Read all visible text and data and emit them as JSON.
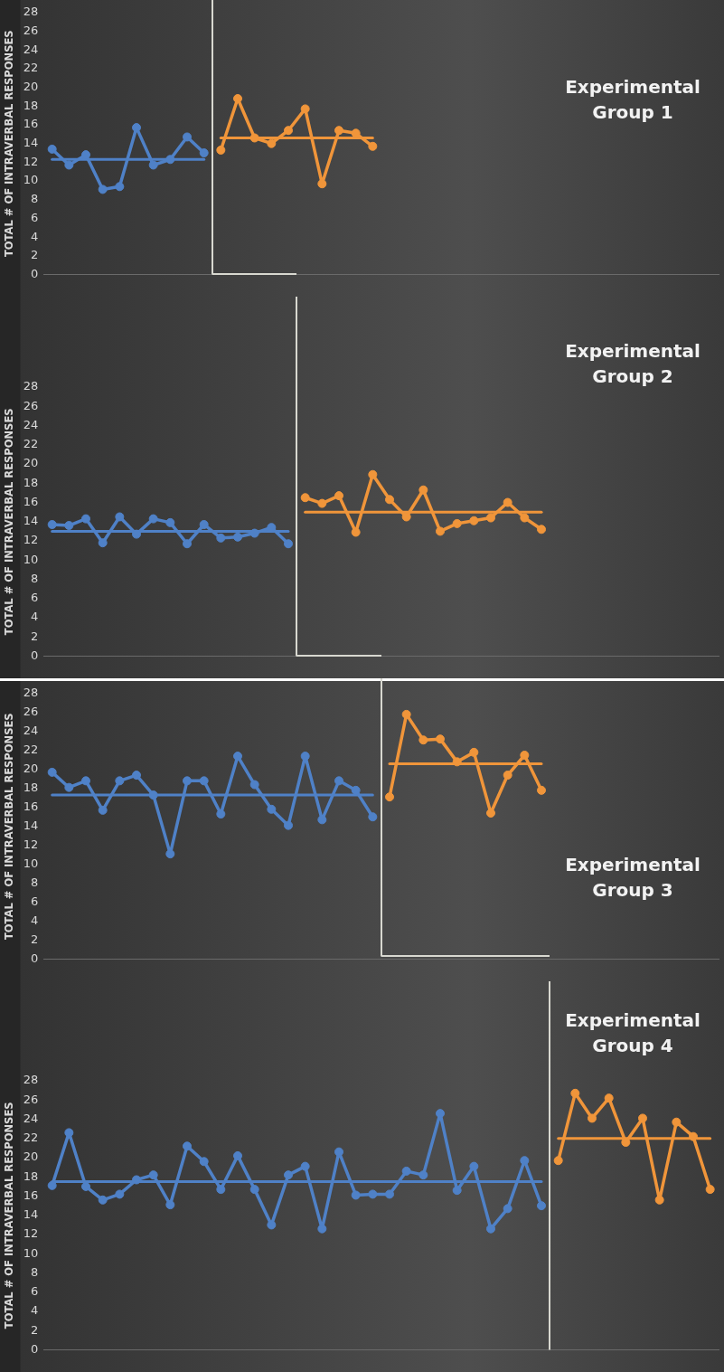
{
  "chart_data": [
    {
      "type": "line",
      "title": "Experimental Group 1",
      "ylabel": "TOTAL # OF INTRAVERBAL RESPONSES",
      "categories": [
        null,
        null,
        null,
        null,
        null,
        null,
        null,
        null,
        null,
        null,
        null,
        null,
        null,
        null,
        null,
        null,
        null,
        null,
        null,
        null,
        null,
        null,
        null,
        null,
        null,
        null,
        null,
        null,
        null,
        null,
        null,
        null,
        null,
        null,
        null,
        null,
        null,
        null,
        null,
        null
      ],
      "ylim": [
        0,
        28
      ],
      "yticks": [
        0,
        2,
        4,
        6,
        8,
        10,
        12,
        14,
        16,
        18,
        20,
        22,
        24,
        26,
        28
      ],
      "grid": false,
      "legend": false,
      "marker": "circle",
      "series": [
        {
          "color": "#4f81c7",
          "values": [
            13.4,
            11.7,
            12.8,
            9.1,
            9.4,
            15.7,
            11.7,
            12.3,
            14.7,
            13.0,
            null,
            null,
            null,
            null,
            null,
            null,
            null,
            null,
            null,
            null,
            null,
            null,
            null,
            null,
            null,
            null,
            null,
            null,
            null,
            null,
            null,
            null,
            null,
            null,
            null,
            null,
            null,
            null,
            null,
            null
          ]
        },
        {
          "color": "#f0953a",
          "values": [
            null,
            null,
            null,
            null,
            null,
            null,
            null,
            null,
            null,
            null,
            13.3,
            18.8,
            14.6,
            14.0,
            15.4,
            17.7,
            9.7,
            15.4,
            15.1,
            13.7,
            null,
            null,
            null,
            null,
            null,
            null,
            null,
            null,
            null,
            null,
            null,
            null,
            null,
            null,
            null,
            null,
            null,
            null,
            null,
            null
          ]
        },
        {
          "type": "line",
          "marker": "none",
          "color": "#4f81c7",
          "values": [
            12.3,
            12.3,
            12.3,
            12.3,
            12.3,
            12.3,
            12.3,
            12.3,
            12.3,
            12.3,
            null,
            null,
            null,
            null,
            null,
            null,
            null,
            null,
            null,
            null,
            null,
            null,
            null,
            null,
            null,
            null,
            null,
            null,
            null,
            null,
            null,
            null,
            null,
            null,
            null,
            null,
            null,
            null,
            null,
            null
          ]
        },
        {
          "type": "line",
          "marker": "none",
          "color": "#f0953a",
          "values": [
            null,
            null,
            null,
            null,
            null,
            null,
            null,
            null,
            null,
            null,
            14.6,
            14.6,
            14.6,
            14.6,
            14.6,
            14.6,
            14.6,
            14.6,
            14.6,
            14.6,
            null,
            null,
            null,
            null,
            null,
            null,
            null,
            null,
            null,
            null,
            null,
            null,
            null,
            null,
            null,
            null,
            null,
            null,
            null,
            null
          ]
        }
      ]
    },
    {
      "type": "line",
      "title": "Experimental Group 2",
      "ylabel": "TOTAL # OF INTRAVERBAL RESPONSES",
      "categories": [
        null,
        null,
        null,
        null,
        null,
        null,
        null,
        null,
        null,
        null,
        null,
        null,
        null,
        null,
        null,
        null,
        null,
        null,
        null,
        null,
        null,
        null,
        null,
        null,
        null,
        null,
        null,
        null,
        null,
        null,
        null,
        null,
        null,
        null,
        null,
        null,
        null,
        null,
        null,
        null
      ],
      "ylim": [
        0,
        28
      ],
      "yticks": [
        0,
        2,
        4,
        6,
        8,
        10,
        12,
        14,
        16,
        18,
        20,
        22,
        24,
        26,
        28
      ],
      "grid": false,
      "legend": false,
      "marker": "circle",
      "series": [
        {
          "color": "#4f81c7",
          "values": [
            13.7,
            13.6,
            14.3,
            11.8,
            14.5,
            12.7,
            14.3,
            13.9,
            11.7,
            13.7,
            12.3,
            12.4,
            12.8,
            13.4,
            11.7,
            null,
            null,
            null,
            null,
            null,
            null,
            null,
            null,
            null,
            null,
            null,
            null,
            null,
            null,
            null,
            null,
            null,
            null,
            null,
            null,
            null,
            null,
            null,
            null,
            null
          ]
        },
        {
          "color": "#f0953a",
          "values": [
            null,
            null,
            null,
            null,
            null,
            null,
            null,
            null,
            null,
            null,
            null,
            null,
            null,
            null,
            null,
            16.5,
            15.9,
            16.7,
            12.9,
            18.9,
            16.3,
            14.5,
            17.3,
            13.0,
            13.8,
            14.1,
            14.4,
            16.0,
            14.4,
            13.2,
            null,
            null,
            null,
            null,
            null,
            null,
            null,
            null,
            null,
            null
          ]
        },
        {
          "type": "line",
          "marker": "none",
          "color": "#4f81c7",
          "values": [
            13.0,
            13.0,
            13.0,
            13.0,
            13.0,
            13.0,
            13.0,
            13.0,
            13.0,
            13.0,
            13.0,
            13.0,
            13.0,
            13.0,
            13.0,
            null,
            null,
            null,
            null,
            null,
            null,
            null,
            null,
            null,
            null,
            null,
            null,
            null,
            null,
            null,
            null,
            null,
            null,
            null,
            null,
            null,
            null,
            null,
            null,
            null
          ]
        },
        {
          "type": "line",
          "marker": "none",
          "color": "#f0953a",
          "values": [
            null,
            null,
            null,
            null,
            null,
            null,
            null,
            null,
            null,
            null,
            null,
            null,
            null,
            null,
            null,
            15.0,
            15.0,
            15.0,
            15.0,
            15.0,
            15.0,
            15.0,
            15.0,
            15.0,
            15.0,
            15.0,
            15.0,
            15.0,
            15.0,
            15.0,
            null,
            null,
            null,
            null,
            null,
            null,
            null,
            null,
            null,
            null
          ]
        }
      ]
    },
    {
      "type": "line",
      "title": "Experimental Group 3",
      "ylabel": "TOTAL # OF INTRAVERBAL RESPONSES",
      "categories": [
        null,
        null,
        null,
        null,
        null,
        null,
        null,
        null,
        null,
        null,
        null,
        null,
        null,
        null,
        null,
        null,
        null,
        null,
        null,
        null,
        null,
        null,
        null,
        null,
        null,
        null,
        null,
        null,
        null,
        null,
        null,
        null,
        null,
        null,
        null,
        null,
        null,
        null,
        null,
        null
      ],
      "ylim": [
        0,
        28
      ],
      "yticks": [
        0,
        2,
        4,
        6,
        8,
        10,
        12,
        14,
        16,
        18,
        20,
        22,
        24,
        26,
        28
      ],
      "grid": false,
      "legend": false,
      "marker": "circle",
      "series": [
        {
          "color": "#4f81c7",
          "values": [
            19.7,
            18.1,
            18.8,
            15.7,
            18.8,
            19.4,
            17.3,
            11.1,
            18.8,
            18.8,
            15.3,
            21.4,
            18.4,
            15.8,
            14.1,
            21.4,
            14.7,
            18.8,
            17.8,
            15.0,
            null,
            null,
            null,
            null,
            null,
            null,
            null,
            null,
            null,
            null,
            null,
            null,
            null,
            null,
            null,
            null,
            null,
            null,
            null,
            null
          ]
        },
        {
          "color": "#f0953a",
          "values": [
            null,
            null,
            null,
            null,
            null,
            null,
            null,
            null,
            null,
            null,
            null,
            null,
            null,
            null,
            null,
            null,
            null,
            null,
            null,
            null,
            17.1,
            25.8,
            23.1,
            23.2,
            20.8,
            21.8,
            15.4,
            19.4,
            21.5,
            17.8,
            null,
            null,
            null,
            null,
            null,
            null,
            null,
            null,
            null,
            null
          ]
        },
        {
          "type": "line",
          "marker": "none",
          "color": "#4f81c7",
          "values": [
            17.3,
            17.3,
            17.3,
            17.3,
            17.3,
            17.3,
            17.3,
            17.3,
            17.3,
            17.3,
            17.3,
            17.3,
            17.3,
            17.3,
            17.3,
            17.3,
            17.3,
            17.3,
            17.3,
            17.3,
            null,
            null,
            null,
            null,
            null,
            null,
            null,
            null,
            null,
            null,
            null,
            null,
            null,
            null,
            null,
            null,
            null,
            null,
            null,
            null
          ]
        },
        {
          "type": "line",
          "marker": "none",
          "color": "#f0953a",
          "values": [
            null,
            null,
            null,
            null,
            null,
            null,
            null,
            null,
            null,
            null,
            null,
            null,
            null,
            null,
            null,
            null,
            null,
            null,
            null,
            null,
            20.6,
            20.6,
            20.6,
            20.6,
            20.6,
            20.6,
            20.6,
            20.6,
            20.6,
            20.6,
            null,
            null,
            null,
            null,
            null,
            null,
            null,
            null,
            null,
            null
          ]
        }
      ]
    },
    {
      "type": "line",
      "title": "Experimental Group 4",
      "ylabel": "TOTAL # OF INTRAVERBAL RESPONSES",
      "categories": [
        null,
        null,
        null,
        null,
        null,
        null,
        null,
        null,
        null,
        null,
        null,
        null,
        null,
        null,
        null,
        null,
        null,
        null,
        null,
        null,
        null,
        null,
        null,
        null,
        null,
        null,
        null,
        null,
        null,
        null,
        null,
        null,
        null,
        null,
        null,
        null,
        null,
        null,
        null,
        null
      ],
      "ylim": [
        0,
        28
      ],
      "yticks": [
        0,
        2,
        4,
        6,
        8,
        10,
        12,
        14,
        16,
        18,
        20,
        22,
        24,
        26,
        28
      ],
      "grid": false,
      "legend": false,
      "marker": "circle",
      "series": [
        {
          "color": "#4f81c7",
          "values": [
            17.1,
            22.6,
            17.0,
            15.6,
            16.2,
            17.7,
            18.2,
            15.1,
            21.2,
            19.6,
            16.7,
            20.2,
            16.7,
            13.0,
            18.2,
            19.1,
            12.6,
            20.6,
            16.1,
            16.2,
            16.2,
            18.6,
            18.2,
            24.6,
            16.6,
            19.1,
            12.6,
            14.7,
            19.7,
            15.0,
            null,
            null,
            null,
            null,
            null,
            null,
            null,
            null,
            null,
            null
          ]
        },
        {
          "color": "#f0953a",
          "values": [
            null,
            null,
            null,
            null,
            null,
            null,
            null,
            null,
            null,
            null,
            null,
            null,
            null,
            null,
            null,
            null,
            null,
            null,
            null,
            null,
            null,
            null,
            null,
            null,
            null,
            null,
            null,
            null,
            null,
            null,
            19.7,
            26.7,
            24.1,
            26.2,
            21.6,
            24.1,
            15.6,
            23.7,
            22.2,
            16.7
          ]
        },
        {
          "type": "line",
          "marker": "none",
          "color": "#4f81c7",
          "values": [
            17.5,
            17.5,
            17.5,
            17.5,
            17.5,
            17.5,
            17.5,
            17.5,
            17.5,
            17.5,
            17.5,
            17.5,
            17.5,
            17.5,
            17.5,
            17.5,
            17.5,
            17.5,
            17.5,
            17.5,
            17.5,
            17.5,
            17.5,
            17.5,
            17.5,
            17.5,
            17.5,
            17.5,
            17.5,
            17.5,
            null,
            null,
            null,
            null,
            null,
            null,
            null,
            null,
            null,
            null
          ]
        },
        {
          "type": "line",
          "marker": "none",
          "color": "#f0953a",
          "values": [
            null,
            null,
            null,
            null,
            null,
            null,
            null,
            null,
            null,
            null,
            null,
            null,
            null,
            null,
            null,
            null,
            null,
            null,
            null,
            null,
            null,
            null,
            null,
            null,
            null,
            null,
            null,
            null,
            null,
            null,
            22.0,
            22.0,
            22.0,
            22.0,
            22.0,
            22.0,
            22.0,
            22.0,
            22.0,
            22.0
          ]
        }
      ]
    }
  ]
}
